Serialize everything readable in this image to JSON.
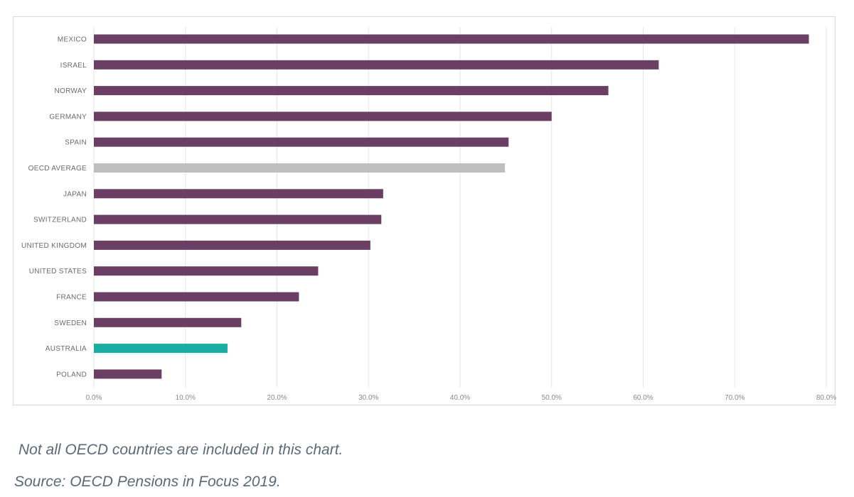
{
  "chart_data": {
    "type": "bar",
    "orientation": "horizontal",
    "categories": [
      "MEXICO",
      "ISRAEL",
      "NORWAY",
      "GERMANY",
      "SPAIN",
      "OECD AVERAGE",
      "JAPAN",
      "SWITZERLAND",
      "UNITED KINGDOM",
      "UNITED STATES",
      "FRANCE",
      "SWEDEN",
      "AUSTRALIA",
      "POLAND"
    ],
    "values": [
      78.1,
      61.7,
      56.2,
      50.0,
      45.3,
      44.9,
      31.6,
      31.4,
      30.2,
      24.5,
      22.4,
      16.1,
      14.6,
      7.4
    ],
    "bar_colors": [
      "#6b3f63",
      "#6b3f63",
      "#6b3f63",
      "#6b3f63",
      "#6b3f63",
      "#bfbfbf",
      "#6b3f63",
      "#6b3f63",
      "#6b3f63",
      "#6b3f63",
      "#6b3f63",
      "#6b3f63",
      "#1aaea3",
      "#6b3f63"
    ],
    "xlim": [
      0,
      80
    ],
    "x_ticks": [
      0,
      10,
      20,
      30,
      40,
      50,
      60,
      70,
      80
    ],
    "x_tick_labels": [
      "0.0%",
      "10.0%",
      "20.0%",
      "30.0%",
      "40.0%",
      "50.0%",
      "60.0%",
      "70.0%",
      "80.0%"
    ],
    "grid": true,
    "title": "",
    "xlabel": "",
    "ylabel": ""
  },
  "notes": {
    "note": "Not all OECD countries are included in this chart.",
    "source": "Source: OECD Pensions in Focus 2019."
  }
}
